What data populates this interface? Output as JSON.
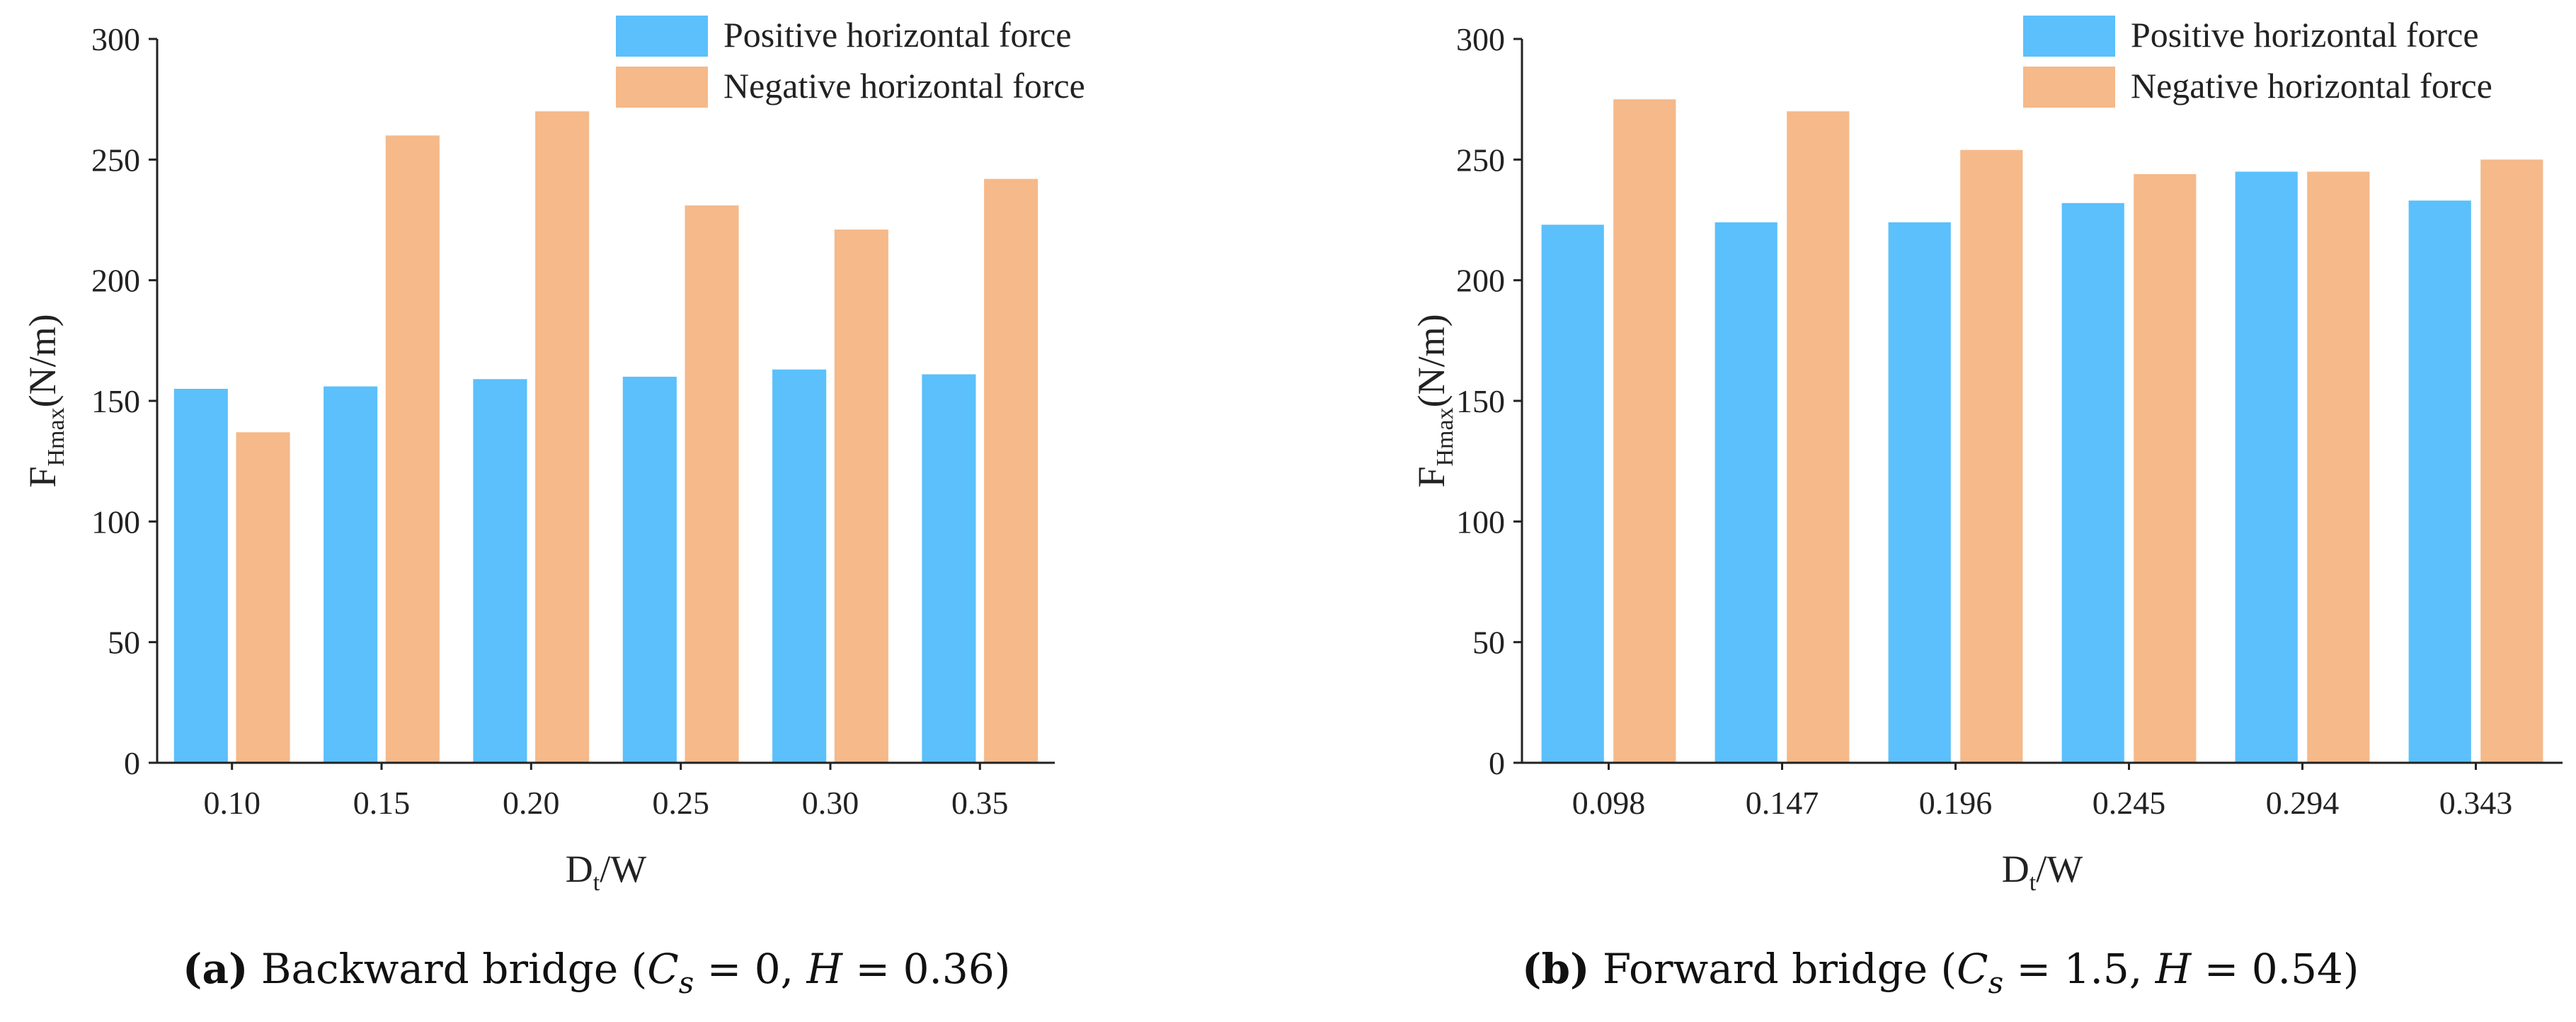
{
  "colors": {
    "positive": "#5bc0fb",
    "negative": "#f5b98a",
    "axis": "#222222"
  },
  "chart_data": [
    {
      "type": "bar",
      "panel": "a",
      "categories": [
        "0.10",
        "0.15",
        "0.20",
        "0.25",
        "0.30",
        "0.35"
      ],
      "series": [
        {
          "name": "Positive horizontal force",
          "values": [
            155,
            156,
            159,
            160,
            163,
            161
          ]
        },
        {
          "name": "Negative horizontal force",
          "values": [
            137,
            260,
            270,
            231,
            221,
            242
          ]
        }
      ],
      "ylabel": {
        "main": "F",
        "sub": "Hmax",
        "rest": "(N/m)"
      },
      "xlabel": {
        "main": "D",
        "sub": "t",
        "rest": "/W"
      },
      "ylim": [
        0,
        300
      ],
      "yticks": [
        "0",
        "50",
        "100",
        "150",
        "200",
        "250",
        "300"
      ],
      "legend": "top-right",
      "caption": {
        "label": "(a)",
        "text": "Backward bridge (",
        "cs_var": "C",
        "cs_sub": "s",
        "cs_eq": " = 0,  ",
        "h_var": "H",
        "h_eq": " = 0.36)"
      }
    },
    {
      "type": "bar",
      "panel": "b",
      "categories": [
        "0.098",
        "0.147",
        "0.196",
        "0.245",
        "0.294",
        "0.343"
      ],
      "series": [
        {
          "name": "Positive horizontal force",
          "values": [
            223,
            224,
            224,
            232,
            245,
            233
          ]
        },
        {
          "name": "Negative horizontal force",
          "values": [
            275,
            270,
            254,
            244,
            245,
            250
          ]
        }
      ],
      "ylabel": {
        "main": "F",
        "sub": "Hmax",
        "rest": "(N/m)"
      },
      "xlabel": {
        "main": "D",
        "sub": "t",
        "rest": "/W"
      },
      "ylim": [
        0,
        300
      ],
      "yticks": [
        "0",
        "50",
        "100",
        "150",
        "200",
        "250",
        "300"
      ],
      "legend": "top-right",
      "caption": {
        "label": "(b)",
        "text": "Forward bridge (",
        "cs_var": "C",
        "cs_sub": "s",
        "cs_eq": " = 1.5,  ",
        "h_var": "H",
        "h_eq": " = 0.54)"
      }
    }
  ]
}
